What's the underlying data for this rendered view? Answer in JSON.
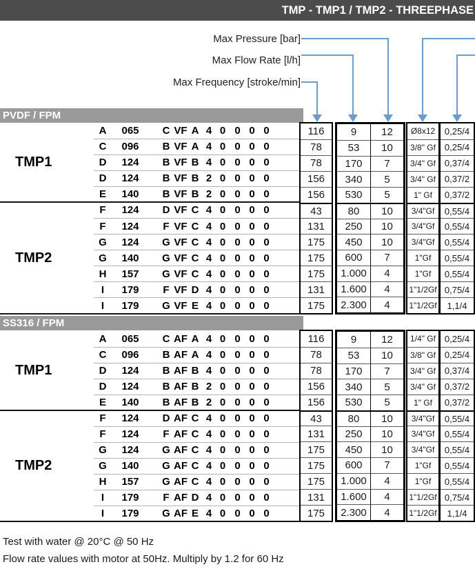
{
  "title": "TMP - TMP1 / TMP2 - THREEPHASE",
  "callouts": {
    "pressure": "Max Pressure [bar]",
    "flow": "Max Flow Rate [l/h]",
    "frequency": "Max Frequency [stroke/min]"
  },
  "sections": [
    {
      "band": "PVDF / FPM",
      "groups": [
        {
          "name": "TMP1",
          "rows": [
            {
              "code": [
                "A",
                "065",
                "C",
                "VF",
                "A",
                "4",
                "0",
                "0",
                "0",
                "0"
              ],
              "values": [
                "116",
                "9",
                "12",
                "Ø8x12",
                "0,25/4"
              ]
            },
            {
              "code": [
                "C",
                "096",
                "B",
                "VF",
                "A",
                "4",
                "0",
                "0",
                "0",
                "0"
              ],
              "values": [
                "78",
                "53",
                "10",
                "3/8\" Gf",
                "0,25/4"
              ]
            },
            {
              "code": [
                "D",
                "124",
                "B",
                "VF",
                "B",
                "4",
                "0",
                "0",
                "0",
                "0"
              ],
              "values": [
                "78",
                "170",
                "7",
                "3/4\" Gf",
                "0,37/4"
              ]
            },
            {
              "code": [
                "D",
                "124",
                "B",
                "VF",
                "B",
                "2",
                "0",
                "0",
                "0",
                "0"
              ],
              "values": [
                "156",
                "340",
                "5",
                "3/4\" Gf",
                "0,37/2"
              ]
            },
            {
              "code": [
                "E",
                "140",
                "B",
                "VF",
                "B",
                "2",
                "0",
                "0",
                "0",
                "0"
              ],
              "values": [
                "156",
                "530",
                "5",
                "1\" Gf",
                "0,37/2"
              ]
            }
          ]
        },
        {
          "name": "TMP2",
          "rows": [
            {
              "code": [
                "F",
                "124",
                "D",
                "VF",
                "C",
                "4",
                "0",
                "0",
                "0",
                "0"
              ],
              "values": [
                "43",
                "80",
                "10",
                "3/4\"Gf",
                "0,55/4"
              ]
            },
            {
              "code": [
                "F",
                "124",
                "F",
                "VF",
                "C",
                "4",
                "0",
                "0",
                "0",
                "0"
              ],
              "values": [
                "131",
                "250",
                "10",
                "3/4\"Gf",
                "0,55/4"
              ]
            },
            {
              "code": [
                "G",
                "124",
                "G",
                "VF",
                "C",
                "4",
                "0",
                "0",
                "0",
                "0"
              ],
              "values": [
                "175",
                "450",
                "10",
                "3/4\"Gf",
                "0,55/4"
              ]
            },
            {
              "code": [
                "G",
                "140",
                "G",
                "VF",
                "C",
                "4",
                "0",
                "0",
                "0",
                "0"
              ],
              "values": [
                "175",
                "600",
                "7",
                "1\"Gf",
                "0,55/4"
              ]
            },
            {
              "code": [
                "H",
                "157",
                "G",
                "VF",
                "C",
                "4",
                "0",
                "0",
                "0",
                "0"
              ],
              "values": [
                "175",
                "1.000",
                "4",
                "1\"Gf",
                "0,55/4"
              ]
            },
            {
              "code": [
                "I",
                "179",
                "F",
                "VF",
                "D",
                "4",
                "0",
                "0",
                "0",
                "0"
              ],
              "values": [
                "131",
                "1.600",
                "4",
                "1\"1/2Gf",
                "0,75/4"
              ]
            },
            {
              "code": [
                "I",
                "179",
                "G",
                "VF",
                "E",
                "4",
                "0",
                "0",
                "0",
                "0"
              ],
              "values": [
                "175",
                "2.300",
                "4",
                "1\"1/2Gf",
                "1,1/4"
              ]
            }
          ]
        }
      ]
    },
    {
      "band": "SS316 / FPM",
      "groups": [
        {
          "name": "TMP1",
          "rows": [
            {
              "code": [
                "A",
                "065",
                "C",
                "AF",
                "A",
                "4",
                "0",
                "0",
                "0",
                "0"
              ],
              "values": [
                "116",
                "9",
                "12",
                "1/4\" Gf",
                "0,25/4"
              ]
            },
            {
              "code": [
                "C",
                "096",
                "B",
                "AF",
                "A",
                "4",
                "0",
                "0",
                "0",
                "0"
              ],
              "values": [
                "78",
                "53",
                "10",
                "3/8\" Gf",
                "0,25/4"
              ]
            },
            {
              "code": [
                "D",
                "124",
                "B",
                "AF",
                "B",
                "4",
                "0",
                "0",
                "0",
                "0"
              ],
              "values": [
                "78",
                "170",
                "7",
                "3/4\" Gf",
                "0,37/4"
              ]
            },
            {
              "code": [
                "D",
                "124",
                "B",
                "AF",
                "B",
                "2",
                "0",
                "0",
                "0",
                "0"
              ],
              "values": [
                "156",
                "340",
                "5",
                "3/4\" Gf",
                "0,37/2"
              ]
            },
            {
              "code": [
                "E",
                "140",
                "B",
                "AF",
                "B",
                "2",
                "0",
                "0",
                "0",
                "0"
              ],
              "values": [
                "156",
                "530",
                "5",
                "1\" Gf",
                "0,37/2"
              ]
            }
          ]
        },
        {
          "name": "TMP2",
          "rows": [
            {
              "code": [
                "F",
                "124",
                "D",
                "AF",
                "C",
                "4",
                "0",
                "0",
                "0",
                "0"
              ],
              "values": [
                "43",
                "80",
                "10",
                "3/4\"Gf",
                "0,55/4"
              ]
            },
            {
              "code": [
                "F",
                "124",
                "F",
                "AF",
                "C",
                "4",
                "0",
                "0",
                "0",
                "0"
              ],
              "values": [
                "131",
                "250",
                "10",
                "3/4\"Gf",
                "0,55/4"
              ]
            },
            {
              "code": [
                "G",
                "124",
                "G",
                "AF",
                "C",
                "4",
                "0",
                "0",
                "0",
                "0"
              ],
              "values": [
                "175",
                "450",
                "10",
                "3/4\"Gf",
                "0,55/4"
              ]
            },
            {
              "code": [
                "G",
                "140",
                "G",
                "AF",
                "C",
                "4",
                "0",
                "0",
                "0",
                "0"
              ],
              "values": [
                "175",
                "600",
                "7",
                "1\"Gf",
                "0,55/4"
              ]
            },
            {
              "code": [
                "H",
                "157",
                "G",
                "AF",
                "C",
                "4",
                "0",
                "0",
                "0",
                "0"
              ],
              "values": [
                "175",
                "1.000",
                "4",
                "1\"Gf",
                "0,55/4"
              ]
            },
            {
              "code": [
                "I",
                "179",
                "F",
                "AF",
                "D",
                "4",
                "0",
                "0",
                "0",
                "0"
              ],
              "values": [
                "131",
                "1.600",
                "4",
                "1\"1/2Gf",
                "0,75/4"
              ]
            },
            {
              "code": [
                "I",
                "179",
                "G",
                "AF",
                "E",
                "4",
                "0",
                "0",
                "0",
                "0"
              ],
              "values": [
                "175",
                "2.300",
                "4",
                "1\"1/2Gf",
                "1,1/4"
              ]
            }
          ]
        }
      ]
    }
  ],
  "footnotes": [
    "Test with water @ 20°C @ 50 Hz",
    "Flow rate values with motor at 50Hz. Multiply by 1.2 for 60 Hz"
  ],
  "colors": {
    "title_bar": "#4c4c4c",
    "band": "#9a9a9a",
    "arrow": "#6d9bcd",
    "border": "#000000"
  }
}
